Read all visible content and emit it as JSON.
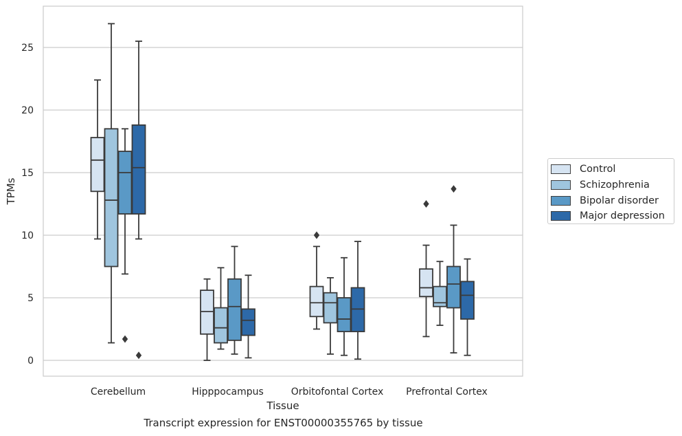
{
  "caption": "Transcript expression for ENST00000355765 by tissue",
  "chart_data": {
    "type": "box",
    "xlabel": "Tissue",
    "ylabel": "TPMs",
    "ylim": [
      -1.3,
      28.4
    ],
    "yticks": [
      0,
      5,
      10,
      15,
      20,
      25
    ],
    "grid": "horizontal",
    "legend_position": "right",
    "categories": [
      "Cerebellum",
      "Hipppocampus",
      "Orbitofontal Cortex",
      "Prefrontal Cortex"
    ],
    "series": [
      {
        "name": "Control",
        "color": "#d6e4f2",
        "boxes": [
          {
            "whislo": 9.7,
            "q1": 13.5,
            "med": 16.0,
            "q3": 17.8,
            "whishi": 22.4,
            "fliers": []
          },
          {
            "whislo": 0.0,
            "q1": 2.1,
            "med": 3.9,
            "q3": 5.6,
            "whishi": 6.5,
            "fliers": []
          },
          {
            "whislo": 2.5,
            "q1": 3.5,
            "med": 4.6,
            "q3": 5.9,
            "whishi": 9.1,
            "fliers": [
              10.0
            ]
          },
          {
            "whislo": 1.9,
            "q1": 5.1,
            "med": 5.8,
            "q3": 7.3,
            "whishi": 9.2,
            "fliers": [
              12.5
            ]
          }
        ]
      },
      {
        "name": "Schizophrenia",
        "color": "#9fc5de",
        "boxes": [
          {
            "whislo": 1.4,
            "q1": 7.5,
            "med": 12.8,
            "q3": 18.5,
            "whishi": 26.9,
            "fliers": []
          },
          {
            "whislo": 0.9,
            "q1": 1.4,
            "med": 2.6,
            "q3": 4.2,
            "whishi": 7.4,
            "fliers": []
          },
          {
            "whislo": 0.5,
            "q1": 3.0,
            "med": 4.6,
            "q3": 5.4,
            "whishi": 6.6,
            "fliers": []
          },
          {
            "whislo": 2.8,
            "q1": 4.3,
            "med": 4.6,
            "q3": 5.9,
            "whishi": 7.9,
            "fliers": []
          }
        ]
      },
      {
        "name": "Bipolar disorder",
        "color": "#5a99c6",
        "boxes": [
          {
            "whislo": 6.9,
            "q1": 11.7,
            "med": 15.0,
            "q3": 16.7,
            "whishi": 18.5,
            "fliers": [
              1.7
            ]
          },
          {
            "whislo": 0.5,
            "q1": 1.6,
            "med": 4.3,
            "q3": 6.5,
            "whishi": 9.1,
            "fliers": []
          },
          {
            "whislo": 0.4,
            "q1": 2.3,
            "med": 3.3,
            "q3": 5.0,
            "whishi": 8.2,
            "fliers": []
          },
          {
            "whislo": 0.6,
            "q1": 4.2,
            "med": 6.1,
            "q3": 7.5,
            "whishi": 10.8,
            "fliers": [
              13.7
            ]
          }
        ]
      },
      {
        "name": "Major depression",
        "color": "#2d69a8",
        "boxes": [
          {
            "whislo": 9.7,
            "q1": 11.7,
            "med": 15.4,
            "q3": 18.8,
            "whishi": 25.5,
            "fliers": [
              0.4
            ]
          },
          {
            "whislo": 0.2,
            "q1": 2.0,
            "med": 3.2,
            "q3": 4.1,
            "whishi": 6.8,
            "fliers": []
          },
          {
            "whislo": 0.1,
            "q1": 2.3,
            "med": 4.1,
            "q3": 5.8,
            "whishi": 9.5,
            "fliers": []
          },
          {
            "whislo": 0.4,
            "q1": 3.3,
            "med": 5.2,
            "q3": 6.3,
            "whishi": 8.1,
            "fliers": []
          }
        ]
      }
    ]
  }
}
